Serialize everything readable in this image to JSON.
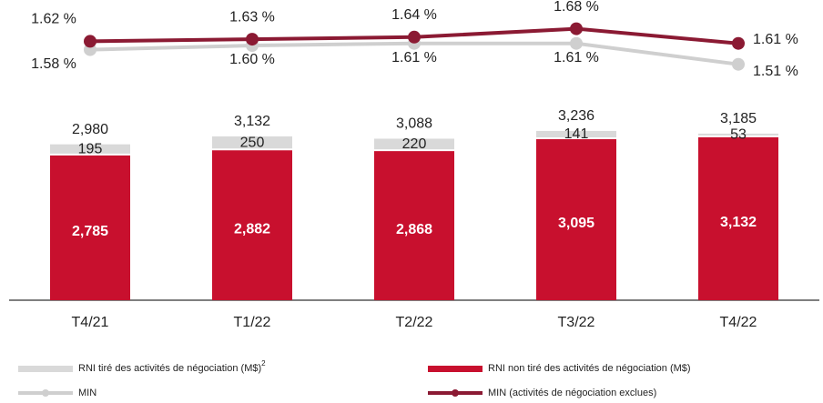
{
  "chart_data": {
    "type": "bar",
    "stacked": true,
    "categories": [
      "T4/21",
      "T1/22",
      "T2/22",
      "T3/22",
      "T4/22"
    ],
    "series": [
      {
        "name": "RNI non tiré des activités de négociation (M$)",
        "color": "#c8102e",
        "values": [
          2785,
          2882,
          2868,
          3095,
          3132
        ],
        "value_labels": [
          "2,785",
          "2,882",
          "2,868",
          "3,095",
          "3,132"
        ]
      },
      {
        "name": "RNI tiré des activités de négociation (M$)",
        "footnote": "2",
        "color": "#d9d9d9",
        "values": [
          195,
          250,
          220,
          141,
          53
        ],
        "value_labels": [
          "195",
          "250",
          "220",
          "141",
          "53"
        ]
      }
    ],
    "totals": [
      2980,
      3132,
      3088,
      3236,
      3185
    ],
    "total_labels": [
      "2,980",
      "3,132",
      "3,088",
      "3,236",
      "3,185"
    ],
    "ylim": [
      0,
      4000
    ],
    "lines": [
      {
        "name": "MIN (activités de négociation exclues)",
        "color": "#8b1a33",
        "axis": "y2",
        "values": [
          1.62,
          1.63,
          1.64,
          1.68,
          1.61
        ],
        "value_labels": [
          "1.62 %",
          "1.63 %",
          "1.64 %",
          "1.68 %",
          "1.61 %"
        ]
      },
      {
        "name": "MIN",
        "color": "#cfcfcf",
        "axis": "y2",
        "values": [
          1.58,
          1.6,
          1.61,
          1.61,
          1.51
        ],
        "value_labels": [
          "1.58 %",
          "1.60 %",
          "1.61 %",
          "1.61 %",
          "1.51 %"
        ]
      }
    ],
    "y2lim": [
      1.4,
      1.8
    ]
  }
}
